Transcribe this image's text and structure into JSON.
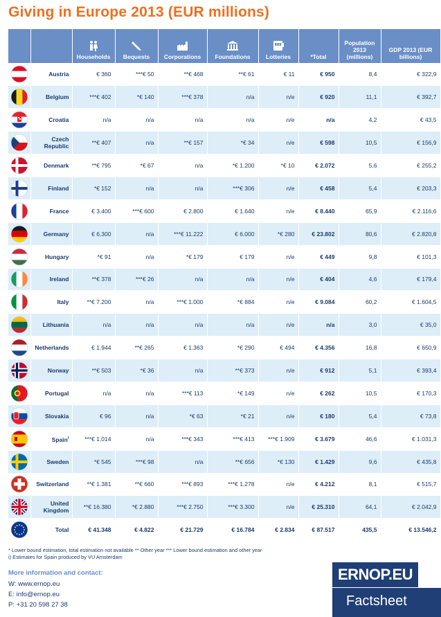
{
  "title": "Giving in Europe 2013 (EUR millions)",
  "headers": {
    "households": "Households",
    "bequests": "Bequests",
    "corporations": "Corporations",
    "foundations": "Foundations",
    "lotteries": "Lotteries",
    "total": "*Total",
    "population": "Population 2013 (millions)",
    "gdp": "GDP 2013 (EUR billions)"
  },
  "rows": [
    {
      "country": "Austria",
      "flag": "austria",
      "households": "€ 360",
      "bequests": "***€ 50",
      "corporations": "**€ 468",
      "foundations": "**€ 61",
      "lotteries": "€ 11",
      "total": "€ 950",
      "population": "8,4",
      "gdp": "€ 322,9"
    },
    {
      "country": "Belgium",
      "flag": "belgium",
      "households": "***€ 402",
      "bequests": "*€ 140",
      "corporations": "***€ 378",
      "foundations": "n/a",
      "lotteries": "n/e",
      "total": "€ 920",
      "population": "11,1",
      "gdp": "€ 392,7"
    },
    {
      "country": "Croatia",
      "flag": "croatia",
      "households": "n/a",
      "bequests": "n/a",
      "corporations": "n/a",
      "foundations": "n/a",
      "lotteries": "n/e",
      "total": "n/a",
      "population": "4,2",
      "gdp": "€ 43,5"
    },
    {
      "country": "Czech Republic",
      "flag": "czech",
      "households": "**€ 407",
      "bequests": "n/a",
      "corporations": "**€ 157",
      "foundations": "*€ 34",
      "lotteries": "n/e",
      "total": "€ 598",
      "population": "10,5",
      "gdp": "€ 156,9"
    },
    {
      "country": "Denmark",
      "flag": "denmark",
      "households": "**€ 795",
      "bequests": "*€ 67",
      "corporations": "n/a",
      "foundations": "*€ 1.200",
      "lotteries": "*€ 10",
      "total": "€ 2.072",
      "population": "5,6",
      "gdp": "€ 255,2"
    },
    {
      "country": "Finland",
      "flag": "finland",
      "households": "*€ 152",
      "bequests": "n/a",
      "corporations": "n/a",
      "foundations": "***€ 306",
      "lotteries": "n/e",
      "total": "€ 458",
      "population": "5,4",
      "gdp": "€ 203,3"
    },
    {
      "country": "France",
      "flag": "france",
      "households": "€ 3.400",
      "bequests": "***€ 600",
      "corporations": "€ 2.800",
      "foundations": "€ 1.640",
      "lotteries": "n/e",
      "total": "€ 8.440",
      "population": "65,9",
      "gdp": "€ 2.116,6"
    },
    {
      "country": "Germany",
      "flag": "germany",
      "households": "€ 6.300",
      "bequests": "n/a",
      "corporations": "***€ 11.222",
      "foundations": "€ 6.000",
      "lotteries": "*€ 280",
      "total": "€ 23.802",
      "population": "80,6",
      "gdp": "€ 2.820,8"
    },
    {
      "country": "Hungary",
      "flag": "hungary",
      "households": "*€ 91",
      "bequests": "n/a",
      "corporations": "*€ 179",
      "foundations": "€ 179",
      "lotteries": "n/e",
      "total": "€ 449",
      "population": "9,8",
      "gdp": "€ 101,3"
    },
    {
      "country": "Ireland",
      "flag": "ireland",
      "households": "**€ 378",
      "bequests": "***€ 26",
      "corporations": "n/a",
      "foundations": "n/a",
      "lotteries": "n/e",
      "total": "€ 404",
      "population": "4,6",
      "gdp": "€ 179,4"
    },
    {
      "country": "Italy",
      "flag": "italy",
      "households": "**€ 7.200",
      "bequests": "n/a",
      "corporations": "***€ 1.000",
      "foundations": "*€ 884",
      "lotteries": "n/e",
      "total": "€ 9.084",
      "population": "60,2",
      "gdp": "€ 1.604,5"
    },
    {
      "country": "Lithuania",
      "flag": "lithuania",
      "households": "n/a",
      "bequests": "n/a",
      "corporations": "n/a",
      "foundations": "n/a",
      "lotteries": "n/e",
      "total": "n/a",
      "population": "3,0",
      "gdp": "€ 35,0"
    },
    {
      "country": "Netherlands",
      "flag": "netherlands",
      "households": "€ 1.944",
      "bequests": "**€ 265",
      "corporations": "€ 1.363",
      "foundations": "*€ 290",
      "lotteries": "€ 494",
      "total": "€ 4.356",
      "population": "16,8",
      "gdp": "€ 650,9"
    },
    {
      "country": "Norway",
      "flag": "norway",
      "households": "**€ 503",
      "bequests": "*€ 36",
      "corporations": "n/a",
      "foundations": "**€ 373",
      "lotteries": "n/e",
      "total": "€ 912",
      "population": "5,1",
      "gdp": "€ 393,4"
    },
    {
      "country": "Portugal",
      "flag": "portugal",
      "households": "n/a",
      "bequests": "n/a",
      "corporations": "***€ 113",
      "foundations": "*€ 149",
      "lotteries": "n/e",
      "total": "€ 262",
      "population": "10,5",
      "gdp": "€ 170,3"
    },
    {
      "country": "Slovakia",
      "flag": "slovakia",
      "households": "€ 96",
      "bequests": "n/a",
      "corporations": "*€ 63",
      "foundations": "*€ 21",
      "lotteries": "n/e",
      "total": "€ 180",
      "population": "5,4",
      "gdp": "€ 73,8"
    },
    {
      "country": "Spain",
      "sup": "i",
      "flag": "spain",
      "households": "***€ 1.014",
      "bequests": "n/a",
      "corporations": "***€ 343",
      "foundations": "***€ 413",
      "lotteries": "***€ 1.909",
      "total": "€ 3.679",
      "population": "46,6",
      "gdp": "€ 1.031,3"
    },
    {
      "country": "Sweden",
      "flag": "sweden",
      "households": "*€ 545",
      "bequests": "***€ 98",
      "corporations": "n/a",
      "foundations": "**€ 656",
      "lotteries": "*€ 130",
      "total": "€ 1.429",
      "population": "9,6",
      "gdp": "€ 435,8"
    },
    {
      "country": "Switzerland",
      "flag": "switzerland",
      "households": "**€ 1.381",
      "bequests": "**€ 660",
      "corporations": "***€ 893",
      "foundations": "***€ 1.278",
      "lotteries": "n/e",
      "total": "€ 4.212",
      "population": "8,1",
      "gdp": "€ 515,7"
    },
    {
      "country": "United Kingdom",
      "flag": "uk",
      "households": "**€ 16.380",
      "bequests": "*€ 2.880",
      "corporations": "***€ 2.750",
      "foundations": "***€ 3.300",
      "lotteries": "n/e",
      "total": "€ 25.310",
      "population": "64,1",
      "gdp": "€ 2.042,9"
    }
  ],
  "total_row": {
    "label": "Total",
    "flag": "eu",
    "households": "€ 41.348",
    "bequests": "€ 4.822",
    "corporations": "€ 21.729",
    "foundations": "€ 16.784",
    "lotteries": "€ 2.834",
    "total": "€ 87.517",
    "population": "435,5",
    "gdp": "€ 13.546,2"
  },
  "notes": {
    "line1": "* Lower bound estimation, total estimation not available  ** Other year  *** Lower bound estimation and other year",
    "line2": "i) Estimates for Spain produced by VU Amsterdam"
  },
  "contact": {
    "heading": "More information and contact:",
    "web": "W: www.ernop.eu",
    "email": "E:  info@ernop.eu",
    "phone": "P:  +31 20 598 27 38"
  },
  "logo_text": "ERNOP.EU",
  "factsheet_label": "Factsheet",
  "colors": {
    "accent": "#ee6f1e",
    "header_bg": "#6a8fc7",
    "row_alt": "#ddeef9",
    "brand": "#1f3f76"
  }
}
